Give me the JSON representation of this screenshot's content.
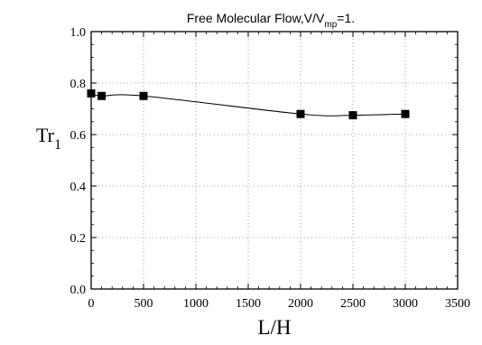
{
  "chart_data": {
    "type": "line",
    "title_main": "Free Molecular Flow,V/V",
    "title_sub": "mp",
    "title_tail": "=1.",
    "ylabel_main": "Tr",
    "ylabel_sub": "1",
    "xlabel": "L/H",
    "xlim": [
      0,
      3500
    ],
    "ylim": [
      0.0,
      1.0
    ],
    "x_ticks": [
      "0",
      "500",
      "1000",
      "1500",
      "2000",
      "2500",
      "3000",
      "3500"
    ],
    "y_ticks": [
      "0.0",
      "0.2",
      "0.4",
      "0.6",
      "0.8",
      "1.0"
    ],
    "grid": true,
    "series": [
      {
        "x": [
          0,
          100,
          500,
          2000,
          2500,
          3000
        ],
        "y": [
          0.76,
          0.75,
          0.75,
          0.68,
          0.675,
          0.68
        ]
      }
    ],
    "curve_color": "#000000"
  }
}
